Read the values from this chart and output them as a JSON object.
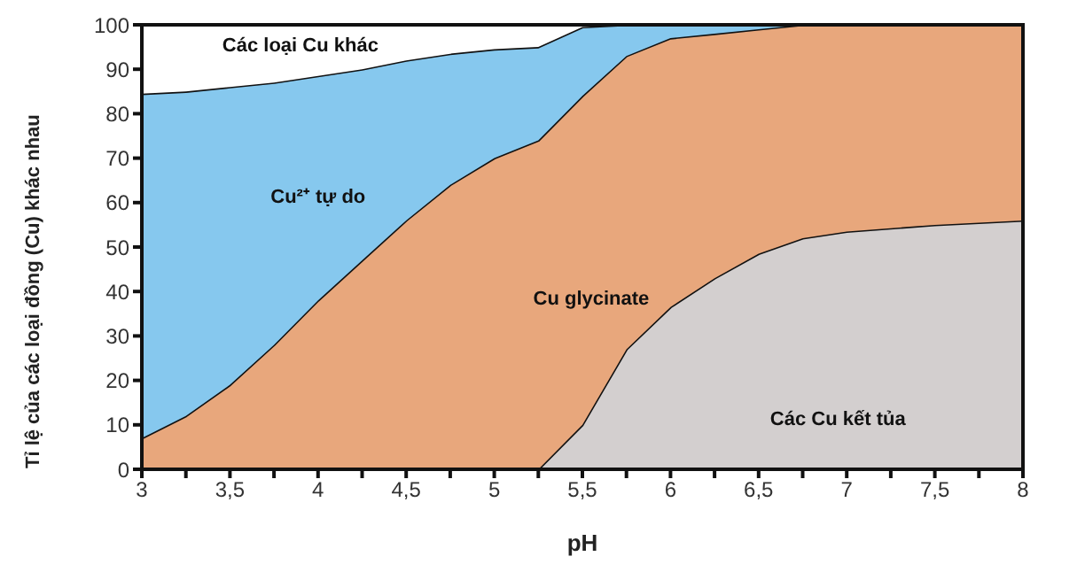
{
  "chart_data": {
    "type": "area",
    "stacked": true,
    "xlabel": "pH",
    "ylabel": "Tỉ lệ của các loại đồng (Cu) khác nhau",
    "x": [
      3,
      3.25,
      3.5,
      3.75,
      4,
      4.25,
      4.5,
      4.75,
      5,
      5.25,
      5.5,
      5.75,
      6,
      6.25,
      6.5,
      6.75,
      7,
      7.5,
      8
    ],
    "xlim": [
      3,
      8
    ],
    "xticks": [
      3,
      {
        "value": 3.25,
        "label": null
      },
      {
        "value": 3.5,
        "label": "3,5"
      },
      {
        "value": 3.75,
        "label": null
      },
      4,
      {
        "value": 4.25,
        "label": null
      },
      {
        "value": 4.5,
        "label": "4,5"
      },
      {
        "value": 4.75,
        "label": null
      },
      5,
      {
        "value": 5.25,
        "label": null
      },
      {
        "value": 5.5,
        "label": "5,5"
      },
      {
        "value": 5.75,
        "label": null
      },
      6,
      {
        "value": 6.25,
        "label": null
      },
      {
        "value": 6.5,
        "label": "6,5"
      },
      {
        "value": 6.75,
        "label": null
      },
      7,
      {
        "value": 7.25,
        "label": null
      },
      {
        "value": 7.5,
        "label": "7,5"
      },
      {
        "value": 7.75,
        "label": null
      },
      8
    ],
    "ylim": [
      0,
      100
    ],
    "yticks": [
      0,
      10,
      20,
      30,
      40,
      50,
      60,
      70,
      80,
      90,
      100
    ],
    "series": [
      {
        "name": "Các Cu kết tủa",
        "color": "#d3cfcf",
        "values": [
          0,
          0,
          0,
          0,
          0,
          0,
          0,
          0,
          0,
          0,
          10,
          27,
          36.5,
          43,
          48.5,
          52,
          53.5,
          55,
          56
        ]
      },
      {
        "name": "Cu glycinate",
        "color": "#e8a77c",
        "values": [
          7,
          12,
          19,
          28,
          38,
          47,
          56,
          64,
          70,
          74,
          74,
          66,
          60.5,
          55,
          50.5,
          48,
          46.5,
          45,
          44
        ]
      },
      {
        "name": "Cu²⁺ tự do",
        "color": "#86c8ee",
        "values": [
          77.5,
          73,
          67,
          59,
          50.5,
          43,
          36,
          29.5,
          24.5,
          21,
          15.5,
          7,
          3,
          2,
          1,
          0,
          0,
          0,
          0
        ]
      },
      {
        "name": "Các loại Cu khác",
        "color": "#ffffff",
        "values": [
          15.5,
          15,
          14,
          13,
          11.5,
          10,
          8,
          6.5,
          5.5,
          5,
          0.5,
          0,
          0,
          0,
          0,
          0,
          0,
          0,
          0
        ]
      }
    ]
  }
}
